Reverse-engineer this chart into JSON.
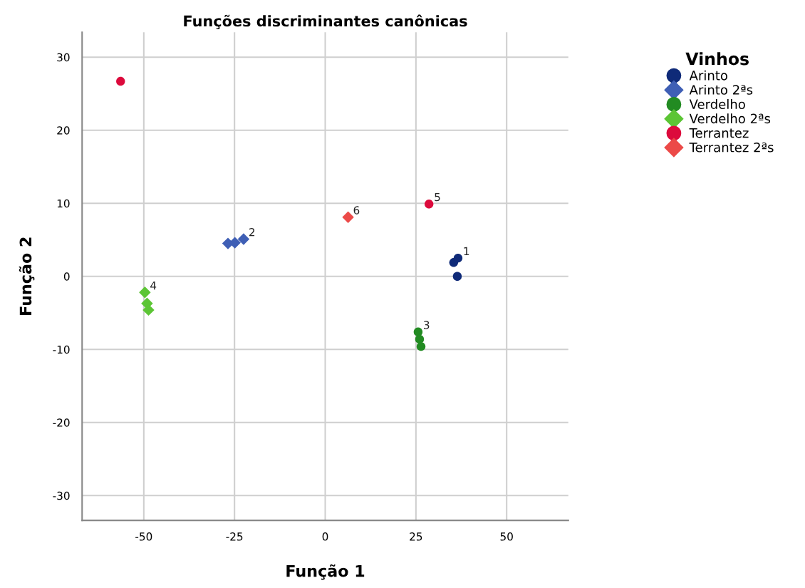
{
  "chart_data": {
    "type": "scatter",
    "title": "Funções discriminantes canônicas",
    "xlabel": "Função 1",
    "ylabel": "Função 2",
    "legend_title": "Vinhos",
    "series": [
      {
        "name": "Arinto",
        "color": "#0f2a78",
        "marker": "circle",
        "x": [
          36.4,
          35.4,
          36.6
        ],
        "values": [
          0,
          1.9,
          2.5
        ]
      },
      {
        "name": "Arinto 2ªs",
        "color": "#3f5fb5",
        "marker": "diamond",
        "x": [
          -26.8,
          -24.9,
          -22.5
        ],
        "values": [
          4.5,
          4.6,
          5.1
        ]
      },
      {
        "name": "Verdelho",
        "color": "#228b22",
        "marker": "circle",
        "x": [
          25.6,
          26.0,
          26.4
        ],
        "values": [
          -7.6,
          -8.6,
          -9.6
        ]
      },
      {
        "name": "Verdelho 2ªs",
        "color": "#5cc535",
        "marker": "diamond",
        "x": [
          -49.7,
          -49.1,
          -48.7
        ],
        "values": [
          -2.2,
          -3.7,
          -4.6
        ]
      },
      {
        "name": "Terrantez",
        "color": "#dc0a3c",
        "marker": "circle",
        "x": [
          -56.4,
          28.6
        ],
        "values": [
          26.7,
          9.9
        ]
      },
      {
        "name": "Terrantez 2ªs",
        "color": "#ec4a48",
        "marker": "diamond",
        "x": [
          6.3
        ],
        "values": [
          8.1
        ]
      }
    ],
    "annotations": [
      {
        "text": "1",
        "x": 36.6,
        "y": 2.5
      },
      {
        "text": "2",
        "x": -22.5,
        "y": 5.1
      },
      {
        "text": "3",
        "x": 25.6,
        "y": -7.6
      },
      {
        "text": "4",
        "x": -49.7,
        "y": -2.2
      },
      {
        "text": "5",
        "x": 28.6,
        "y": 9.9
      },
      {
        "text": "6",
        "x": 6.3,
        "y": 8.1
      }
    ],
    "xlim": [
      -67,
      67
    ],
    "ylim": [
      -33.4,
      33.4
    ],
    "xticks": [
      -50,
      -25,
      0,
      25,
      50
    ],
    "yticks": [
      -30,
      -20,
      -10,
      0,
      10,
      20,
      30
    ],
    "grid": true,
    "legend": "right"
  }
}
